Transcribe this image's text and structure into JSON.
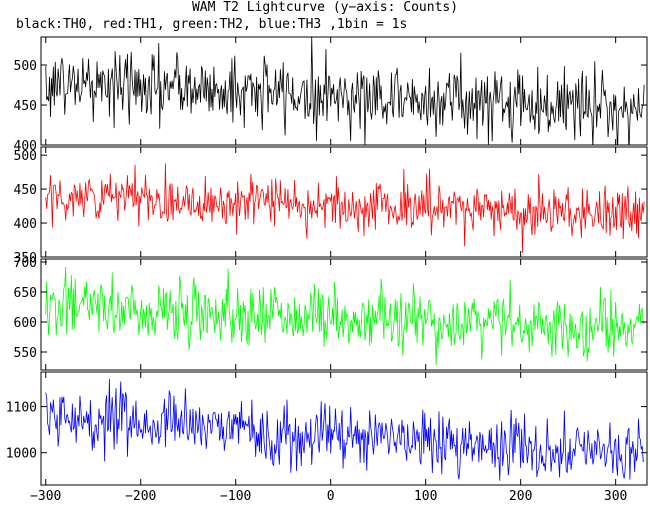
{
  "chart_data": {
    "type": "line",
    "title": "WAM T2 Lightcurve (y−axis: Counts)",
    "subtitle": "black:TH0, red:TH1, green:TH2, blue:TH3 ,1bin = 1s",
    "xlabel": "",
    "ylabel": "",
    "xlim": [
      -305,
      333
    ],
    "x_ticks": [
      -300,
      -200,
      -100,
      0,
      100,
      200,
      300
    ],
    "x_tick_labels": [
      "−300",
      "−200",
      "−100",
      "0",
      "100",
      "200",
      "300"
    ],
    "x_start": -300,
    "x_end": 330,
    "x_step": 1,
    "grid": false,
    "panels": [
      {
        "name": "TH0",
        "color": "#000000",
        "ylim": [
          400,
          535
        ],
        "y_ticks": [
          400,
          450,
          500
        ],
        "y_tick_labels": [
          "400",
          "450",
          "500"
        ],
        "mean_start": 478,
        "mean_end": 446,
        "noise_sigma": 22,
        "values_every_30s": [
          480,
          476,
          475,
          473,
          472,
          470,
          468,
          467,
          465,
          463,
          462,
          460,
          459,
          457,
          456,
          455,
          453,
          452,
          450,
          449,
          447,
          446
        ]
      },
      {
        "name": "TH1",
        "color": "#ff0000",
        "ylim": [
          350,
          512
        ],
        "y_ticks": [
          350,
          400,
          450,
          500
        ],
        "y_tick_labels": [
          "350",
          "400",
          "450",
          "500"
        ],
        "mean_start": 440,
        "mean_end": 413,
        "noise_sigma": 19,
        "values_every_30s": [
          441,
          438,
          437,
          436,
          434,
          433,
          432,
          430,
          429,
          428,
          426,
          425,
          424,
          423,
          421,
          420,
          419,
          418,
          417,
          415,
          414,
          413
        ]
      },
      {
        "name": "TH2",
        "color": "#00ff00",
        "ylim": [
          520,
          705
        ],
        "y_ticks": [
          550,
          600,
          650,
          700
        ],
        "y_tick_labels": [
          "550",
          "600",
          "650",
          "700"
        ],
        "mean_start": 627,
        "mean_end": 588,
        "noise_sigma": 26,
        "values_every_30s": [
          628,
          625,
          623,
          621,
          619,
          617,
          615,
          613,
          611,
          609,
          608,
          606,
          604,
          602,
          600,
          599,
          597,
          595,
          593,
          591,
          590,
          588
        ]
      },
      {
        "name": "TH3",
        "color": "#0000ff",
        "ylim": [
          930,
          1175
        ],
        "y_ticks": [
          1000,
          1100
        ],
        "y_tick_labels": [
          "1000",
          "1100"
        ],
        "mean_start": 1075,
        "mean_end": 998,
        "noise_sigma": 32,
        "values_every_30s": [
          1076,
          1071,
          1067,
          1063,
          1059,
          1055,
          1051,
          1047,
          1043,
          1039,
          1035,
          1032,
          1028,
          1024,
          1020,
          1017,
          1013,
          1010,
          1006,
          1003,
          1000,
          998
        ]
      }
    ]
  }
}
